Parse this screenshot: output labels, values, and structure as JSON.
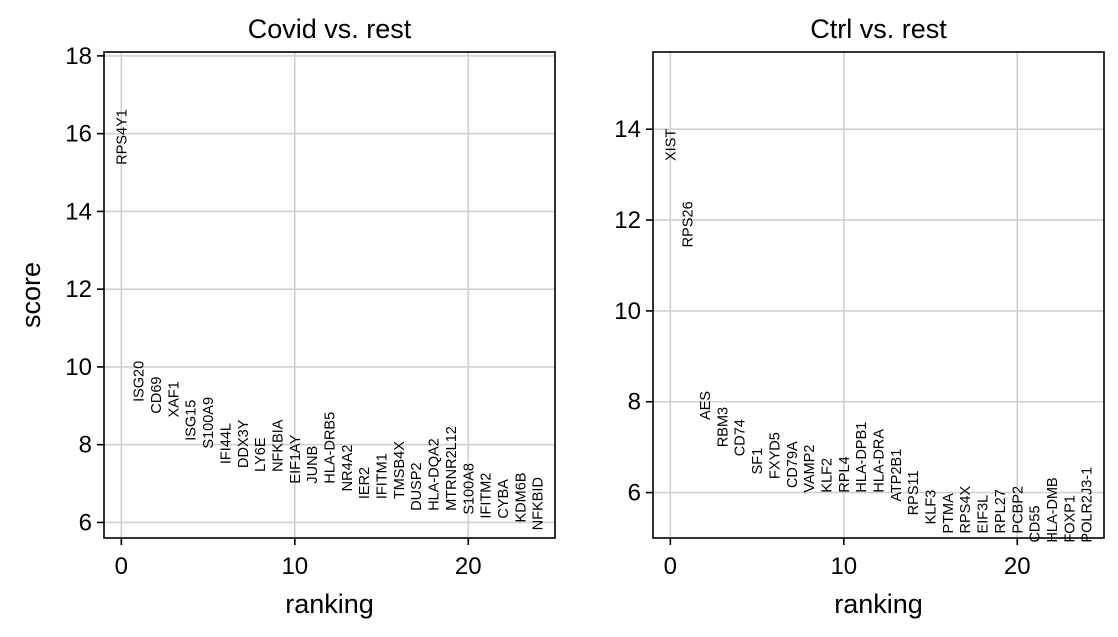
{
  "chart_data": [
    {
      "type": "scatter",
      "title": "Covid vs. rest",
      "xlabel": "ranking",
      "ylabel": "score",
      "xlim": [
        -1,
        25
      ],
      "ylim": [
        5.6,
        18.1
      ],
      "xticks": [
        0,
        10,
        20
      ],
      "yticks": [
        6,
        8,
        10,
        12,
        14,
        16,
        18
      ],
      "grid": true,
      "genes": [
        "RPS4Y1",
        "ISG20",
        "CD69",
        "XAF1",
        "ISG15",
        "S100A9",
        "IFI44L",
        "DDX3Y",
        "LY6E",
        "NFKBIA",
        "EIF1AY",
        "JUNB",
        "HLA-DRB5",
        "NR4A2",
        "IER2",
        "IFITM1",
        "TMSB4X",
        "DUSP2",
        "HLA-DQA2",
        "MTRNR2L12",
        "S100A8",
        "IFITM2",
        "CYBA",
        "KDM6B",
        "NFKBID"
      ],
      "x": [
        0,
        1,
        2,
        3,
        4,
        5,
        6,
        7,
        8,
        9,
        10,
        11,
        12,
        13,
        14,
        15,
        16,
        17,
        18,
        19,
        20,
        21,
        22,
        23,
        24
      ],
      "scores": [
        15.2,
        9.1,
        8.8,
        8.7,
        8.1,
        7.9,
        7.5,
        7.4,
        7.3,
        7.3,
        7.0,
        7.0,
        7.0,
        6.8,
        6.6,
        6.6,
        6.6,
        6.3,
        6.3,
        6.3,
        6.2,
        6.1,
        6.1,
        6.0,
        5.8
      ]
    },
    {
      "type": "scatter",
      "title": "Ctrl vs. rest",
      "xlabel": "ranking",
      "ylabel": "",
      "xlim": [
        -1,
        25
      ],
      "ylim": [
        5.0,
        15.7
      ],
      "xticks": [
        0,
        10,
        20
      ],
      "yticks": [
        6,
        8,
        10,
        12,
        14
      ],
      "grid": true,
      "genes": [
        "XIST",
        "RPS26",
        "AES",
        "RBM3",
        "CD74",
        "SF1",
        "FXYD5",
        "CD79A",
        "VAMP2",
        "KLF2",
        "RPL4",
        "HLA-DPB1",
        "HLA-DRA",
        "ATP2B1",
        "RPS11",
        "KLF3",
        "PTMA",
        "RPS4X",
        "EIF3L",
        "RPL27",
        "PCBP2",
        "CD55",
        "HLA-DMB",
        "FOXP1",
        "POLR2J3-1"
      ],
      "x": [
        0,
        1,
        2,
        3,
        4,
        5,
        6,
        7,
        8,
        9,
        10,
        11,
        12,
        13,
        14,
        15,
        16,
        17,
        18,
        19,
        20,
        21,
        22,
        23,
        24
      ],
      "scores": [
        13.3,
        11.4,
        7.6,
        7.0,
        6.8,
        6.4,
        6.3,
        6.1,
        6.0,
        6.0,
        6.0,
        6.0,
        6.0,
        5.8,
        5.5,
        5.3,
        5.1,
        5.1,
        5.1,
        5.1,
        5.1,
        4.9,
        4.9,
        4.9,
        4.9
      ]
    }
  ]
}
